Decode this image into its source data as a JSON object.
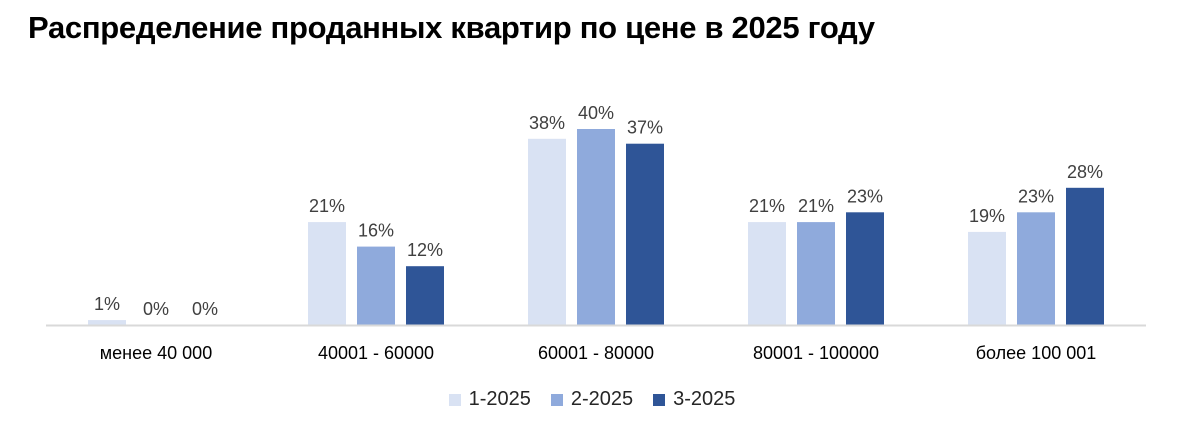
{
  "chart_data": {
    "type": "bar",
    "title": "Распределение проданных квартир по цене в 2025 году",
    "categories": [
      "менее 40 000",
      "40001 - 60000",
      "60001 - 80000",
      "80001 - 100000",
      "более 100 001"
    ],
    "series": [
      {
        "name": "1-2025",
        "values": [
          1,
          21,
          38,
          21,
          19
        ],
        "labels": [
          "1%",
          "21%",
          "38%",
          "21%",
          "19%"
        ],
        "color": "#D9E2F3"
      },
      {
        "name": "2-2025",
        "values": [
          0,
          16,
          40,
          21,
          23
        ],
        "labels": [
          "0%",
          "16%",
          "40%",
          "21%",
          "23%"
        ],
        "color": "#8FAADC"
      },
      {
        "name": "3-2025",
        "values": [
          0,
          12,
          37,
          23,
          28
        ],
        "labels": [
          "0%",
          "12%",
          "37%",
          "23%",
          "28%"
        ],
        "color": "#2F5597"
      }
    ],
    "ylim": [
      0,
      40
    ],
    "grid": false,
    "legend": "bottom",
    "axis_color": "#D9D9D9"
  }
}
